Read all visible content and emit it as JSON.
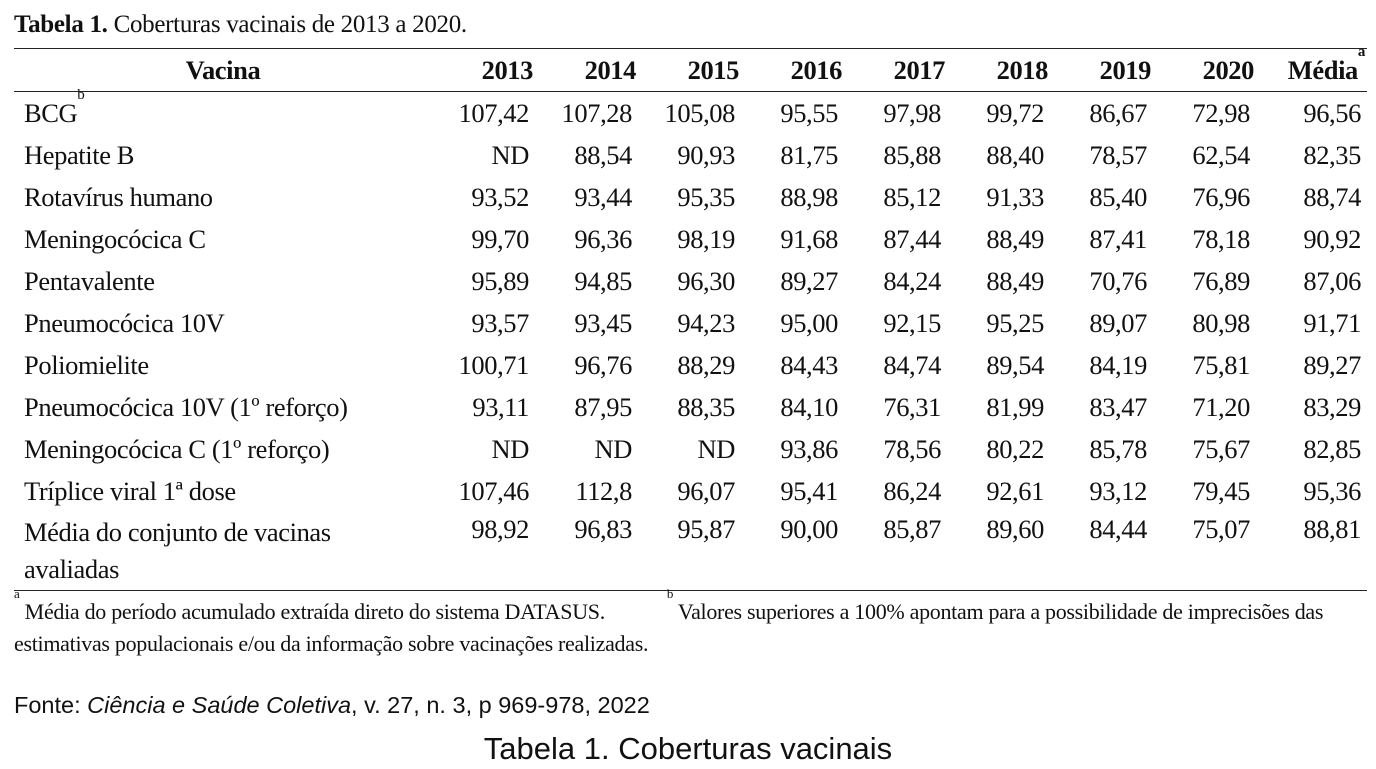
{
  "caption": {
    "label": "Tabela 1.",
    "text": " Coberturas vacinais de 2013 a 2020."
  },
  "table": {
    "name_header": "Vacina",
    "years": [
      "2013",
      "2014",
      "2015",
      "2016",
      "2017",
      "2018",
      "2019",
      "2020"
    ],
    "avg_header": "Média",
    "avg_header_sup": "a",
    "rows": [
      {
        "name": "BCG",
        "sup": "b",
        "values": [
          "107,42",
          "107,28",
          "105,08",
          "95,55",
          "97,98",
          "99,72",
          "86,67",
          "72,98",
          "96,56"
        ]
      },
      {
        "name": "Hepatite B",
        "values": [
          "ND",
          "88,54",
          "90,93",
          "81,75",
          "85,88",
          "88,40",
          "78,57",
          "62,54",
          "82,35"
        ]
      },
      {
        "name": "Rotavírus humano",
        "values": [
          "93,52",
          "93,44",
          "95,35",
          "88,98",
          "85,12",
          "91,33",
          "85,40",
          "76,96",
          "88,74"
        ]
      },
      {
        "name": "Meningocócica C",
        "values": [
          "99,70",
          "96,36",
          "98,19",
          "91,68",
          "87,44",
          "88,49",
          "87,41",
          "78,18",
          "90,92"
        ]
      },
      {
        "name": "Pentavalente",
        "values": [
          "95,89",
          "94,85",
          "96,30",
          "89,27",
          "84,24",
          "88,49",
          "70,76",
          "76,89",
          "87,06"
        ]
      },
      {
        "name": "Pneumocócica 10V",
        "values": [
          "93,57",
          "93,45",
          "94,23",
          "95,00",
          "92,15",
          "95,25",
          "89,07",
          "80,98",
          "91,71"
        ]
      },
      {
        "name": "Poliomielite",
        "values": [
          "100,71",
          "96,76",
          "88,29",
          "84,43",
          "84,74",
          "89,54",
          "84,19",
          "75,81",
          "89,27"
        ]
      },
      {
        "name": "Pneumocócica 10V (1º reforço)",
        "values": [
          "93,11",
          "87,95",
          "88,35",
          "84,10",
          "76,31",
          "81,99",
          "83,47",
          "71,20",
          "83,29"
        ]
      },
      {
        "name": "Meningocócica C (1º reforço)",
        "values": [
          "ND",
          "ND",
          "ND",
          "93,86",
          "78,56",
          "80,22",
          "85,78",
          "75,67",
          "82,85"
        ]
      },
      {
        "name": "Tríplice viral 1ª dose",
        "values": [
          "107,46",
          "112,8",
          "96,07",
          "95,41",
          "86,24",
          "92,61",
          "93,12",
          "79,45",
          "95,36"
        ]
      },
      {
        "name": "Média do conjunto de vacinas avaliadas",
        "values": [
          "98,92",
          "96,83",
          "95,87",
          "90,00",
          "85,87",
          "89,60",
          "84,44",
          "75,07",
          "88,81"
        ]
      }
    ]
  },
  "footnotes": {
    "a_mark": "a",
    "a_text": " Média do período acumulado extraída direto do sistema DATASUS.",
    "b_mark": "b",
    "b_text": " Valores superiores a 100% apontam para a possibilidade de imprecisões das estimativas populacionais e/ou da informação sobre vacinações realizadas."
  },
  "source": {
    "prefix": "Fonte: ",
    "journal": "Ciência e Saúde Coletiva",
    "details": ", v. 27, n. 3, p 969-978, 2022"
  },
  "bottom_title": "Tabela 1. Coberturas vacinais"
}
